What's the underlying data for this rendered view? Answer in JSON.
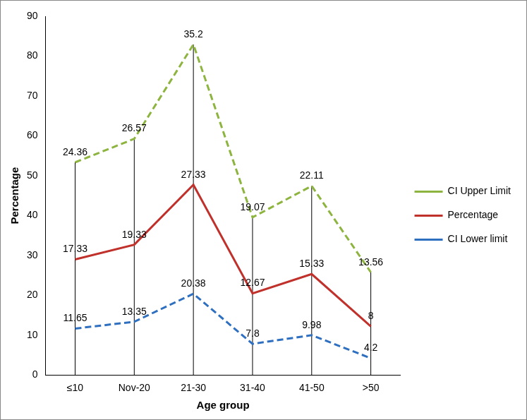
{
  "chart_data": {
    "type": "line",
    "x_label": "Age group",
    "y_label": "Percentage",
    "categories": [
      "≤10",
      "Nov-20",
      "21-30",
      "31-40",
      "41-50",
      ">50"
    ],
    "stacked": true,
    "data_labels": true,
    "grid": false,
    "legend": "right",
    "ylim": [
      0,
      90
    ],
    "yticks": [
      0,
      10,
      20,
      30,
      40,
      50,
      60,
      70,
      80,
      90
    ],
    "series": [
      {
        "name": "CI Upper Limit",
        "color": "#8db43e",
        "line_style": "dashed",
        "marker": "none",
        "values": [
          24.36,
          26.57,
          35.2,
          19.07,
          22.11,
          13.56
        ]
      },
      {
        "name": "Percentage",
        "color": "#c0312b",
        "line_style": "solid",
        "marker": "none",
        "values": [
          17.33,
          19.33,
          27.33,
          12.67,
          15.33,
          8
        ]
      },
      {
        "name": "CI Lower limit",
        "color": "#2e6fc0",
        "line_style": "dashed",
        "marker": "none",
        "values": [
          11.65,
          13.35,
          20.38,
          7.8,
          9.98,
          4.2
        ]
      }
    ]
  }
}
